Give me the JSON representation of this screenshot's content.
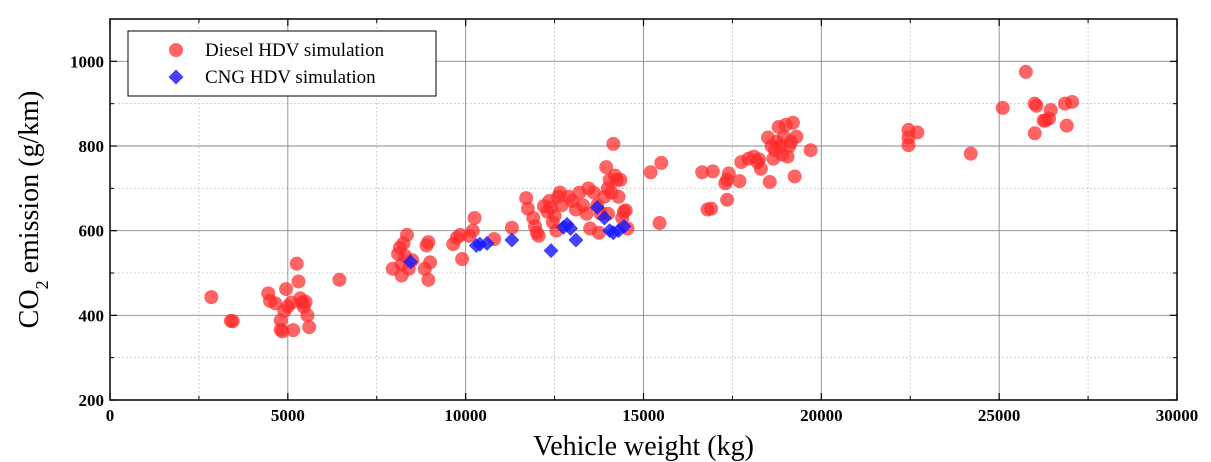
{
  "chart_data": {
    "type": "scatter",
    "xlabel": "Vehicle weight (kg)",
    "ylabel": {
      "prefix": "CO",
      "subscript": "2",
      "suffix": " emission (g/km)"
    },
    "xlim": [
      0,
      30000
    ],
    "ylim": [
      200,
      1100
    ],
    "xticks": [
      0,
      5000,
      10000,
      15000,
      20000,
      25000,
      30000
    ],
    "yticks": [
      200,
      400,
      600,
      800,
      1000
    ],
    "grid": true,
    "legend_position": "top-left",
    "series": [
      {
        "name": "Diesel HDV simulation",
        "marker": "circle",
        "color": "#ff2a2a",
        "points": [
          [
            2850,
            443
          ],
          [
            3400,
            387
          ],
          [
            3450,
            386
          ],
          [
            4450,
            452
          ],
          [
            4500,
            434
          ],
          [
            4650,
            428
          ],
          [
            4800,
            388
          ],
          [
            4800,
            366
          ],
          [
            4850,
            362
          ],
          [
            4900,
            410
          ],
          [
            4950,
            462
          ],
          [
            5000,
            421
          ],
          [
            5100,
            430
          ],
          [
            5150,
            365
          ],
          [
            5250,
            522
          ],
          [
            5300,
            480
          ],
          [
            5350,
            440
          ],
          [
            5400,
            430
          ],
          [
            5450,
            420
          ],
          [
            5500,
            432
          ],
          [
            5550,
            400
          ],
          [
            5600,
            372
          ],
          [
            6450,
            484
          ],
          [
            7950,
            510
          ],
          [
            8100,
            545
          ],
          [
            8150,
            560
          ],
          [
            8200,
            520
          ],
          [
            8200,
            494
          ],
          [
            8250,
            570
          ],
          [
            8300,
            540
          ],
          [
            8350,
            590
          ],
          [
            8400,
            510
          ],
          [
            8500,
            530
          ],
          [
            8850,
            510
          ],
          [
            8900,
            565
          ],
          [
            8950,
            573
          ],
          [
            8950,
            484
          ],
          [
            9000,
            525
          ],
          [
            9650,
            568
          ],
          [
            9750,
            583
          ],
          [
            9850,
            590
          ],
          [
            9900,
            533
          ],
          [
            10100,
            588
          ],
          [
            10200,
            600
          ],
          [
            10250,
            630
          ],
          [
            10800,
            580
          ],
          [
            11300,
            607
          ],
          [
            11700,
            677
          ],
          [
            11750,
            652
          ],
          [
            11900,
            630
          ],
          [
            11950,
            610
          ],
          [
            12000,
            595
          ],
          [
            12050,
            588
          ],
          [
            12200,
            658
          ],
          [
            12300,
            645
          ],
          [
            12350,
            670
          ],
          [
            12400,
            655
          ],
          [
            12450,
            620
          ],
          [
            12500,
            635
          ],
          [
            12550,
            600
          ],
          [
            12600,
            680
          ],
          [
            12650,
            690
          ],
          [
            12700,
            660
          ],
          [
            12900,
            680
          ],
          [
            13000,
            670
          ],
          [
            13100,
            650
          ],
          [
            13200,
            690
          ],
          [
            13300,
            660
          ],
          [
            13400,
            640
          ],
          [
            13450,
            700
          ],
          [
            13500,
            605
          ],
          [
            13600,
            690
          ],
          [
            13700,
            660
          ],
          [
            13750,
            595
          ],
          [
            13800,
            640
          ],
          [
            13900,
            680
          ],
          [
            13950,
            750
          ],
          [
            14000,
            700
          ],
          [
            14000,
            640
          ],
          [
            14050,
            720
          ],
          [
            14100,
            690
          ],
          [
            14150,
            805
          ],
          [
            14200,
            730
          ],
          [
            14250,
            720
          ],
          [
            14300,
            680
          ],
          [
            14350,
            720
          ],
          [
            14400,
            630
          ],
          [
            14450,
            645
          ],
          [
            14500,
            648
          ],
          [
            14550,
            605
          ],
          [
            15200,
            738
          ],
          [
            15450,
            618
          ],
          [
            15500,
            760
          ],
          [
            16650,
            738
          ],
          [
            16800,
            650
          ],
          [
            16900,
            652
          ],
          [
            16950,
            740
          ],
          [
            17300,
            712
          ],
          [
            17350,
            673
          ],
          [
            17350,
            720
          ],
          [
            17400,
            735
          ],
          [
            17700,
            717
          ],
          [
            17750,
            762
          ],
          [
            17950,
            770
          ],
          [
            18100,
            775
          ],
          [
            18200,
            762
          ],
          [
            18250,
            768
          ],
          [
            18300,
            746
          ],
          [
            18500,
            820
          ],
          [
            18550,
            715
          ],
          [
            18600,
            800
          ],
          [
            18650,
            770
          ],
          [
            18700,
            790
          ],
          [
            18750,
            810
          ],
          [
            18800,
            845
          ],
          [
            18850,
            800
          ],
          [
            18900,
            780
          ],
          [
            18950,
            822
          ],
          [
            19000,
            850
          ],
          [
            19050,
            775
          ],
          [
            19100,
            800
          ],
          [
            19150,
            810
          ],
          [
            19200,
            855
          ],
          [
            19250,
            728
          ],
          [
            19300,
            822
          ],
          [
            19700,
            790
          ],
          [
            22450,
            838
          ],
          [
            22450,
            820
          ],
          [
            22450,
            802
          ],
          [
            22700,
            832
          ],
          [
            24200,
            782
          ],
          [
            25100,
            890
          ],
          [
            25750,
            975
          ],
          [
            26000,
            900
          ],
          [
            26000,
            830
          ],
          [
            26050,
            895
          ],
          [
            26250,
            860
          ],
          [
            26300,
            860
          ],
          [
            26400,
            865
          ],
          [
            26450,
            885
          ],
          [
            26850,
            900
          ],
          [
            26900,
            848
          ],
          [
            27050,
            904
          ]
        ]
      },
      {
        "name": "CNG HDV simulation",
        "marker": "diamond",
        "color": "#1a1aff",
        "points": [
          [
            8450,
            526
          ],
          [
            10300,
            565
          ],
          [
            10400,
            568
          ],
          [
            10600,
            570
          ],
          [
            11300,
            578
          ],
          [
            12400,
            553
          ],
          [
            12750,
            608
          ],
          [
            12850,
            615
          ],
          [
            12950,
            605
          ],
          [
            13100,
            578
          ],
          [
            13700,
            655
          ],
          [
            13900,
            630
          ],
          [
            14050,
            600
          ],
          [
            14150,
            595
          ],
          [
            14300,
            600
          ],
          [
            14450,
            610
          ]
        ]
      }
    ]
  }
}
